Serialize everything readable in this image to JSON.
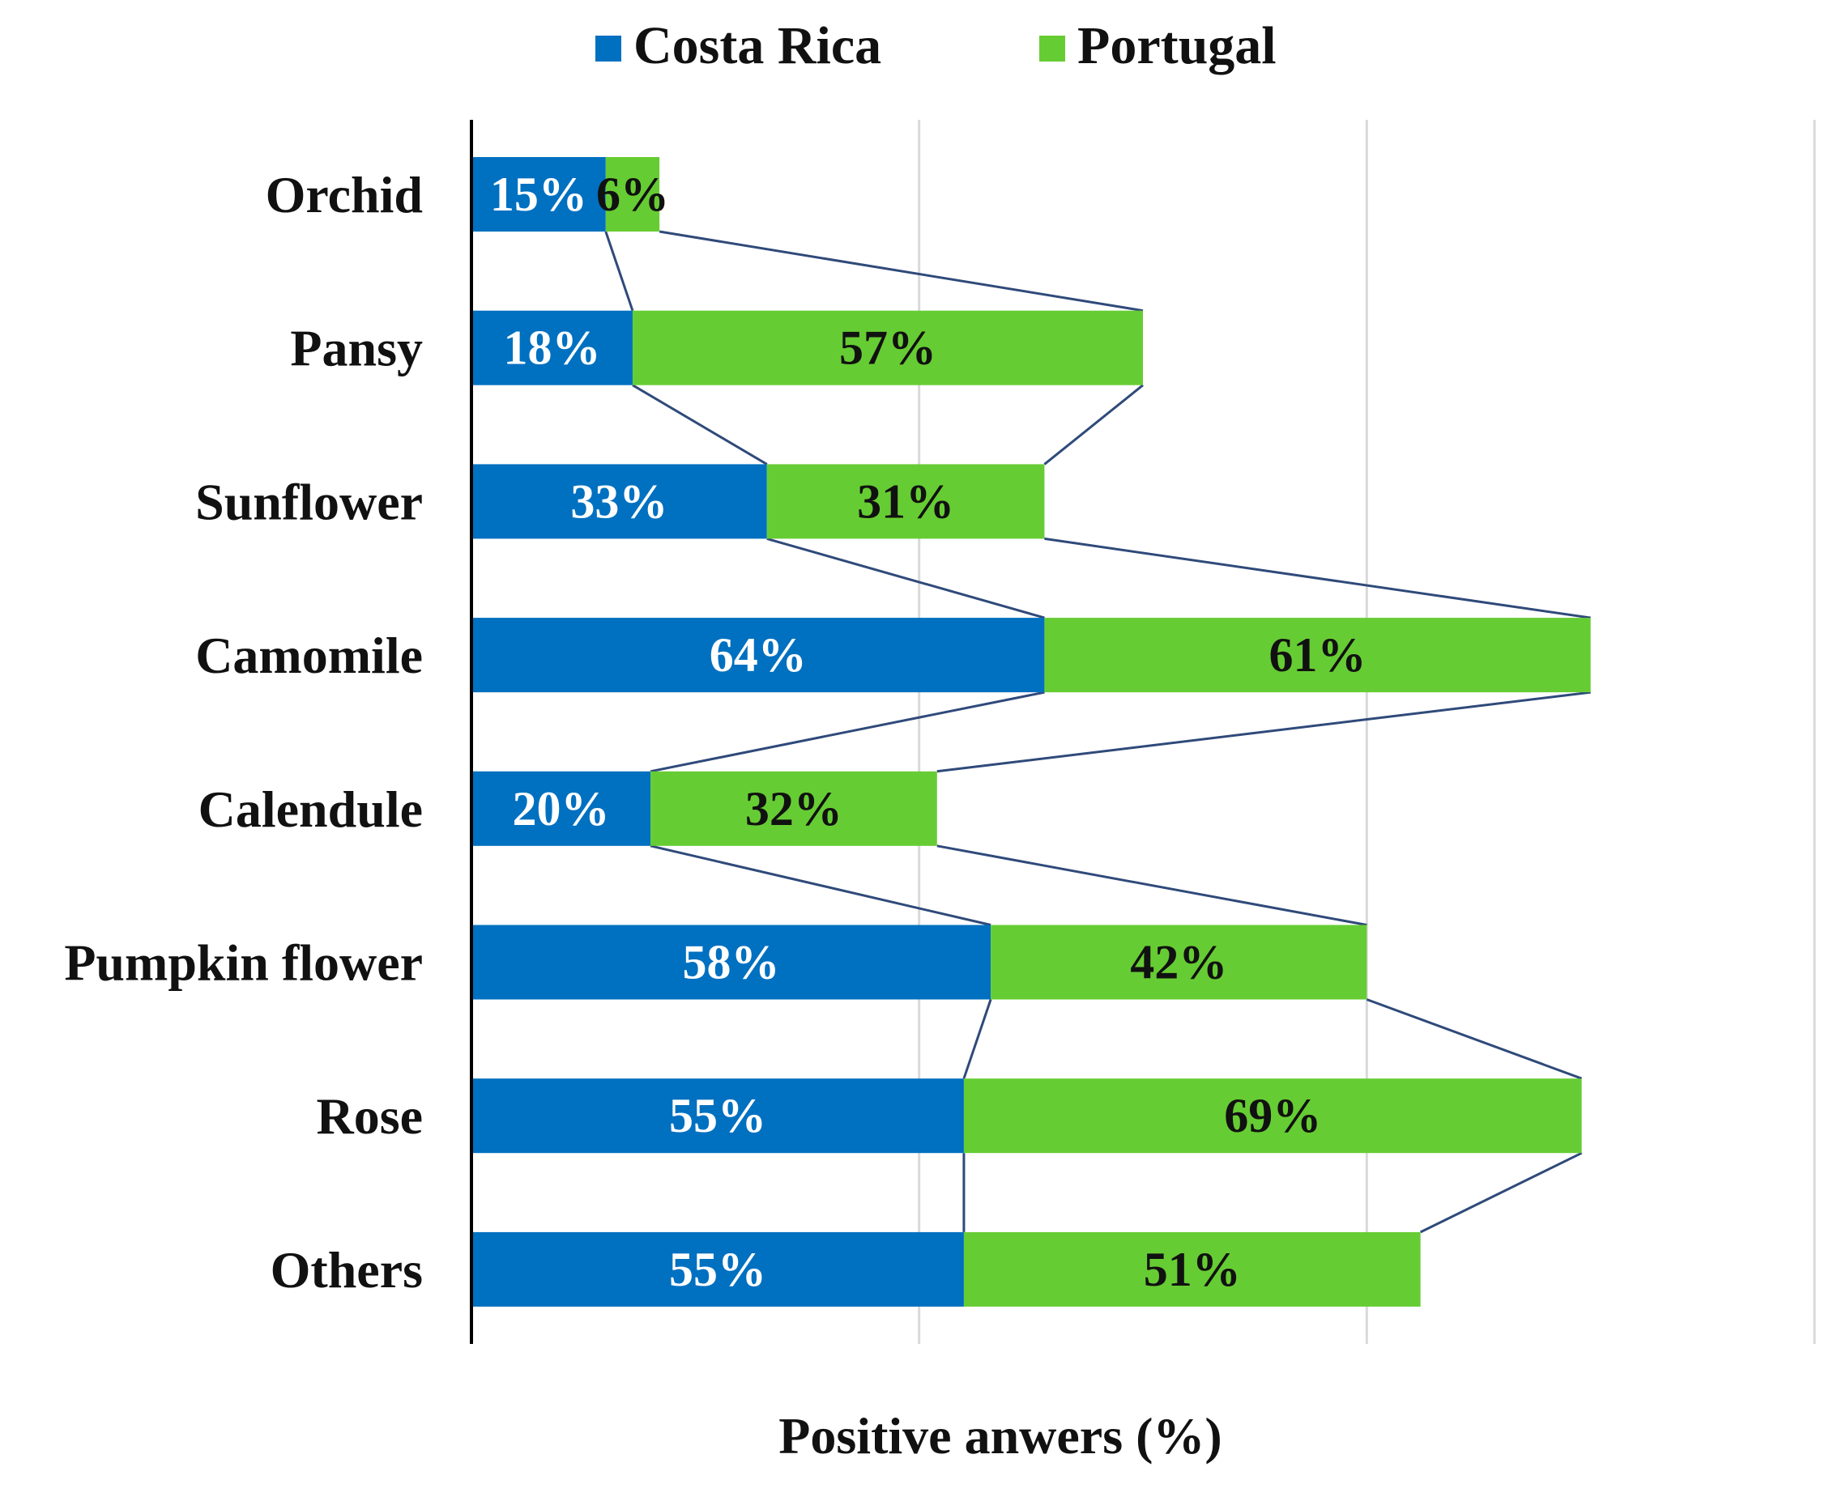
{
  "chart_data": {
    "type": "bar",
    "stacked": true,
    "orientation": "horizontal",
    "categories": [
      "Orchid",
      "Pansy",
      "Sunflower",
      "Camomile",
      "Calendule",
      "Pumpkin flower",
      "Rose",
      "Others"
    ],
    "series": [
      {
        "name": "Costa Rica",
        "color": "#0070c0",
        "label_color": "#ffffff",
        "values": [
          15,
          18,
          33,
          64,
          20,
          58,
          55,
          55
        ],
        "labels": [
          "15%",
          "18%",
          "33%",
          "64%",
          "20%",
          "58%",
          "55%",
          "55%"
        ]
      },
      {
        "name": "Portugal",
        "color": "#66cc33",
        "label_color": "#111111",
        "values": [
          6,
          57,
          31,
          61,
          32,
          42,
          69,
          51
        ],
        "labels": [
          "6%",
          "57%",
          "31%",
          "61%",
          "32%",
          "42%",
          "69%",
          "51%"
        ]
      }
    ],
    "title": "",
    "xlabel": "Positive anwers (%)",
    "ylabel": "",
    "xlim": [
      0,
      150
    ],
    "gridlines_x": [
      50,
      100,
      150
    ],
    "tick_labels_visible": false,
    "series_lines": true,
    "series_line_color": "#2f4a7a",
    "legend": {
      "position": "top",
      "entries": [
        "Costa Rica",
        "Portugal"
      ]
    }
  }
}
